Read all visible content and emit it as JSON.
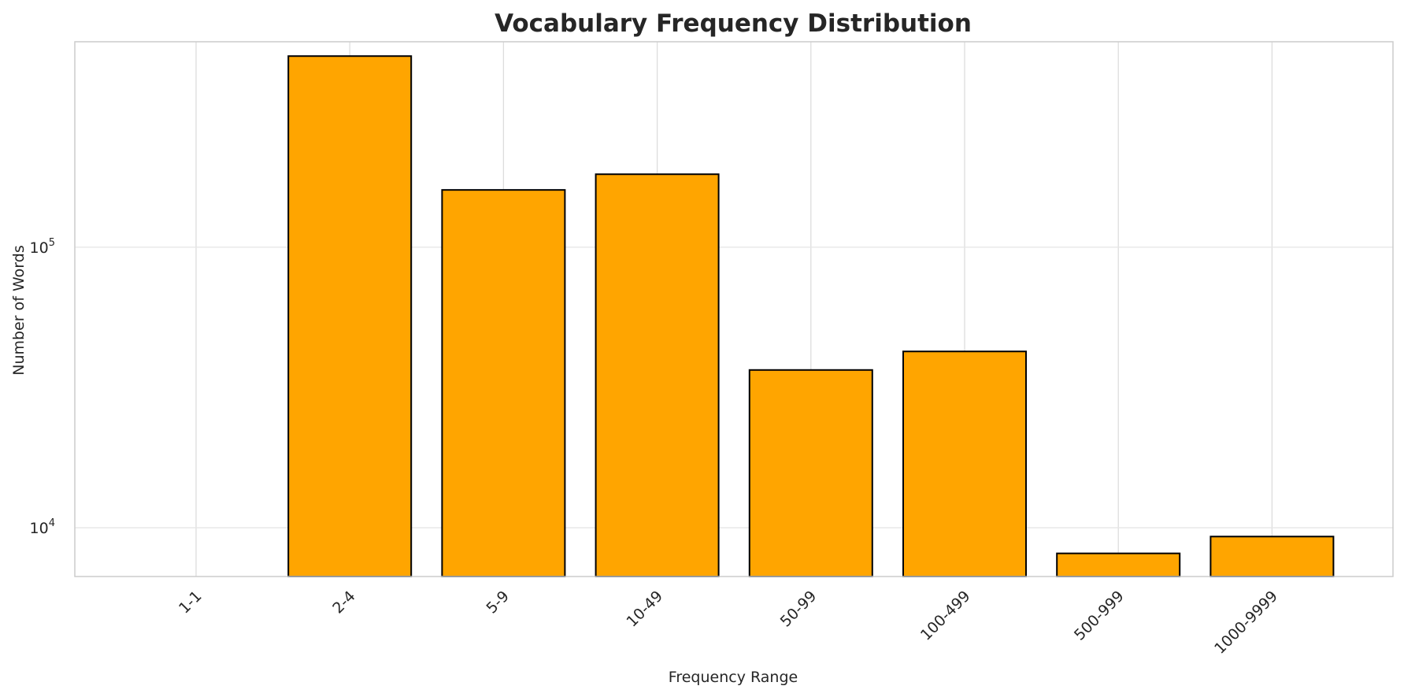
{
  "chart_data": {
    "type": "bar",
    "title": "Vocabulary Frequency Distribution",
    "xlabel": "Frequency Range",
    "ylabel": "Number of Words",
    "categories": [
      "1-1",
      "2-4",
      "5-9",
      "10-49",
      "50-99",
      "100-499",
      "500-999",
      "1000-9999"
    ],
    "values": [
      null,
      480000,
      160000,
      182000,
      36500,
      42500,
      8100,
      9300
    ],
    "y_scale": "log",
    "ylim": [
      6700,
      540000
    ],
    "y_ticks": [
      {
        "value": 10000,
        "base": "10",
        "exp": "4"
      },
      {
        "value": 100000,
        "base": "10",
        "exp": "5"
      }
    ],
    "grid": true,
    "bar_color": "#FFA500",
    "bar_edge_color": "#000000",
    "grid_color": "#dddddd",
    "frame_color": "#cccccc",
    "text_color": "#262626"
  }
}
